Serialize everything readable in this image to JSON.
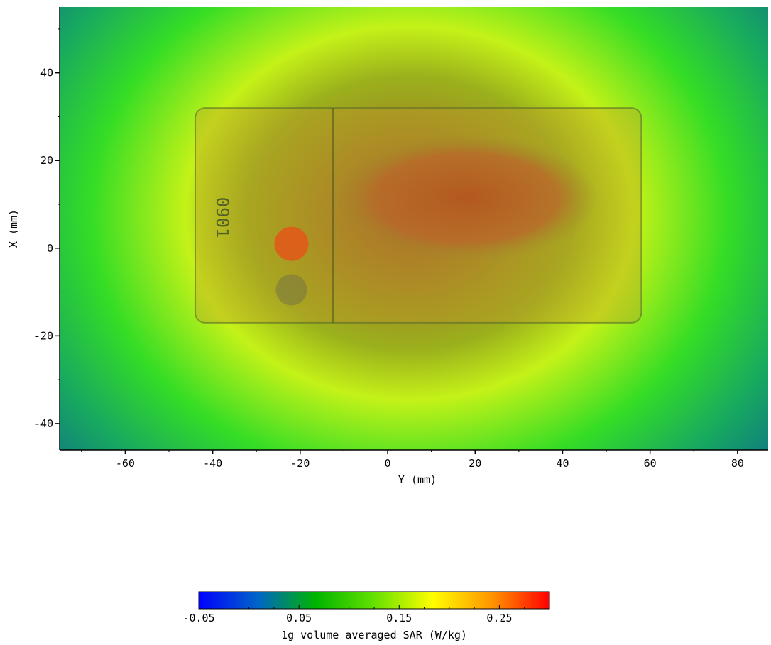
{
  "chart_data": {
    "type": "heatmap",
    "title": "",
    "xlabel": "Y (mm)",
    "ylabel": "X (mm)",
    "xlim": [
      -75,
      87
    ],
    "ylim": [
      -46,
      55
    ],
    "x_ticks": [
      -60,
      -40,
      -20,
      0,
      20,
      40,
      60,
      80
    ],
    "y_ticks": [
      -40,
      -20,
      0,
      20,
      40
    ],
    "x_tick_labels": [
      "-60",
      "-40",
      "-20",
      "0",
      "20",
      "40",
      "60",
      "80"
    ],
    "y_tick_labels": [
      "-40",
      "-20",
      "0",
      "20",
      "40"
    ],
    "grid": false,
    "peak": {
      "x": 22,
      "y": 12,
      "value": 0.27
    },
    "device_overlay": {
      "label": "0901",
      "y_range": [
        -44,
        58
      ],
      "x_range": [
        -17,
        32
      ]
    },
    "colorbar": {
      "label": "1g volume averaged SAR (W/kg)",
      "range": [
        -0.05,
        0.3
      ],
      "ticks": [
        -0.05,
        0.05,
        0.15,
        0.25
      ],
      "tick_labels": [
        "-0.05",
        "0.05",
        "0.15",
        "0.25"
      ],
      "colors": [
        "#0000ff",
        "#0064c8",
        "#00b400",
        "#64e100",
        "#ffff00",
        "#ff9600",
        "#ff0000"
      ]
    }
  }
}
